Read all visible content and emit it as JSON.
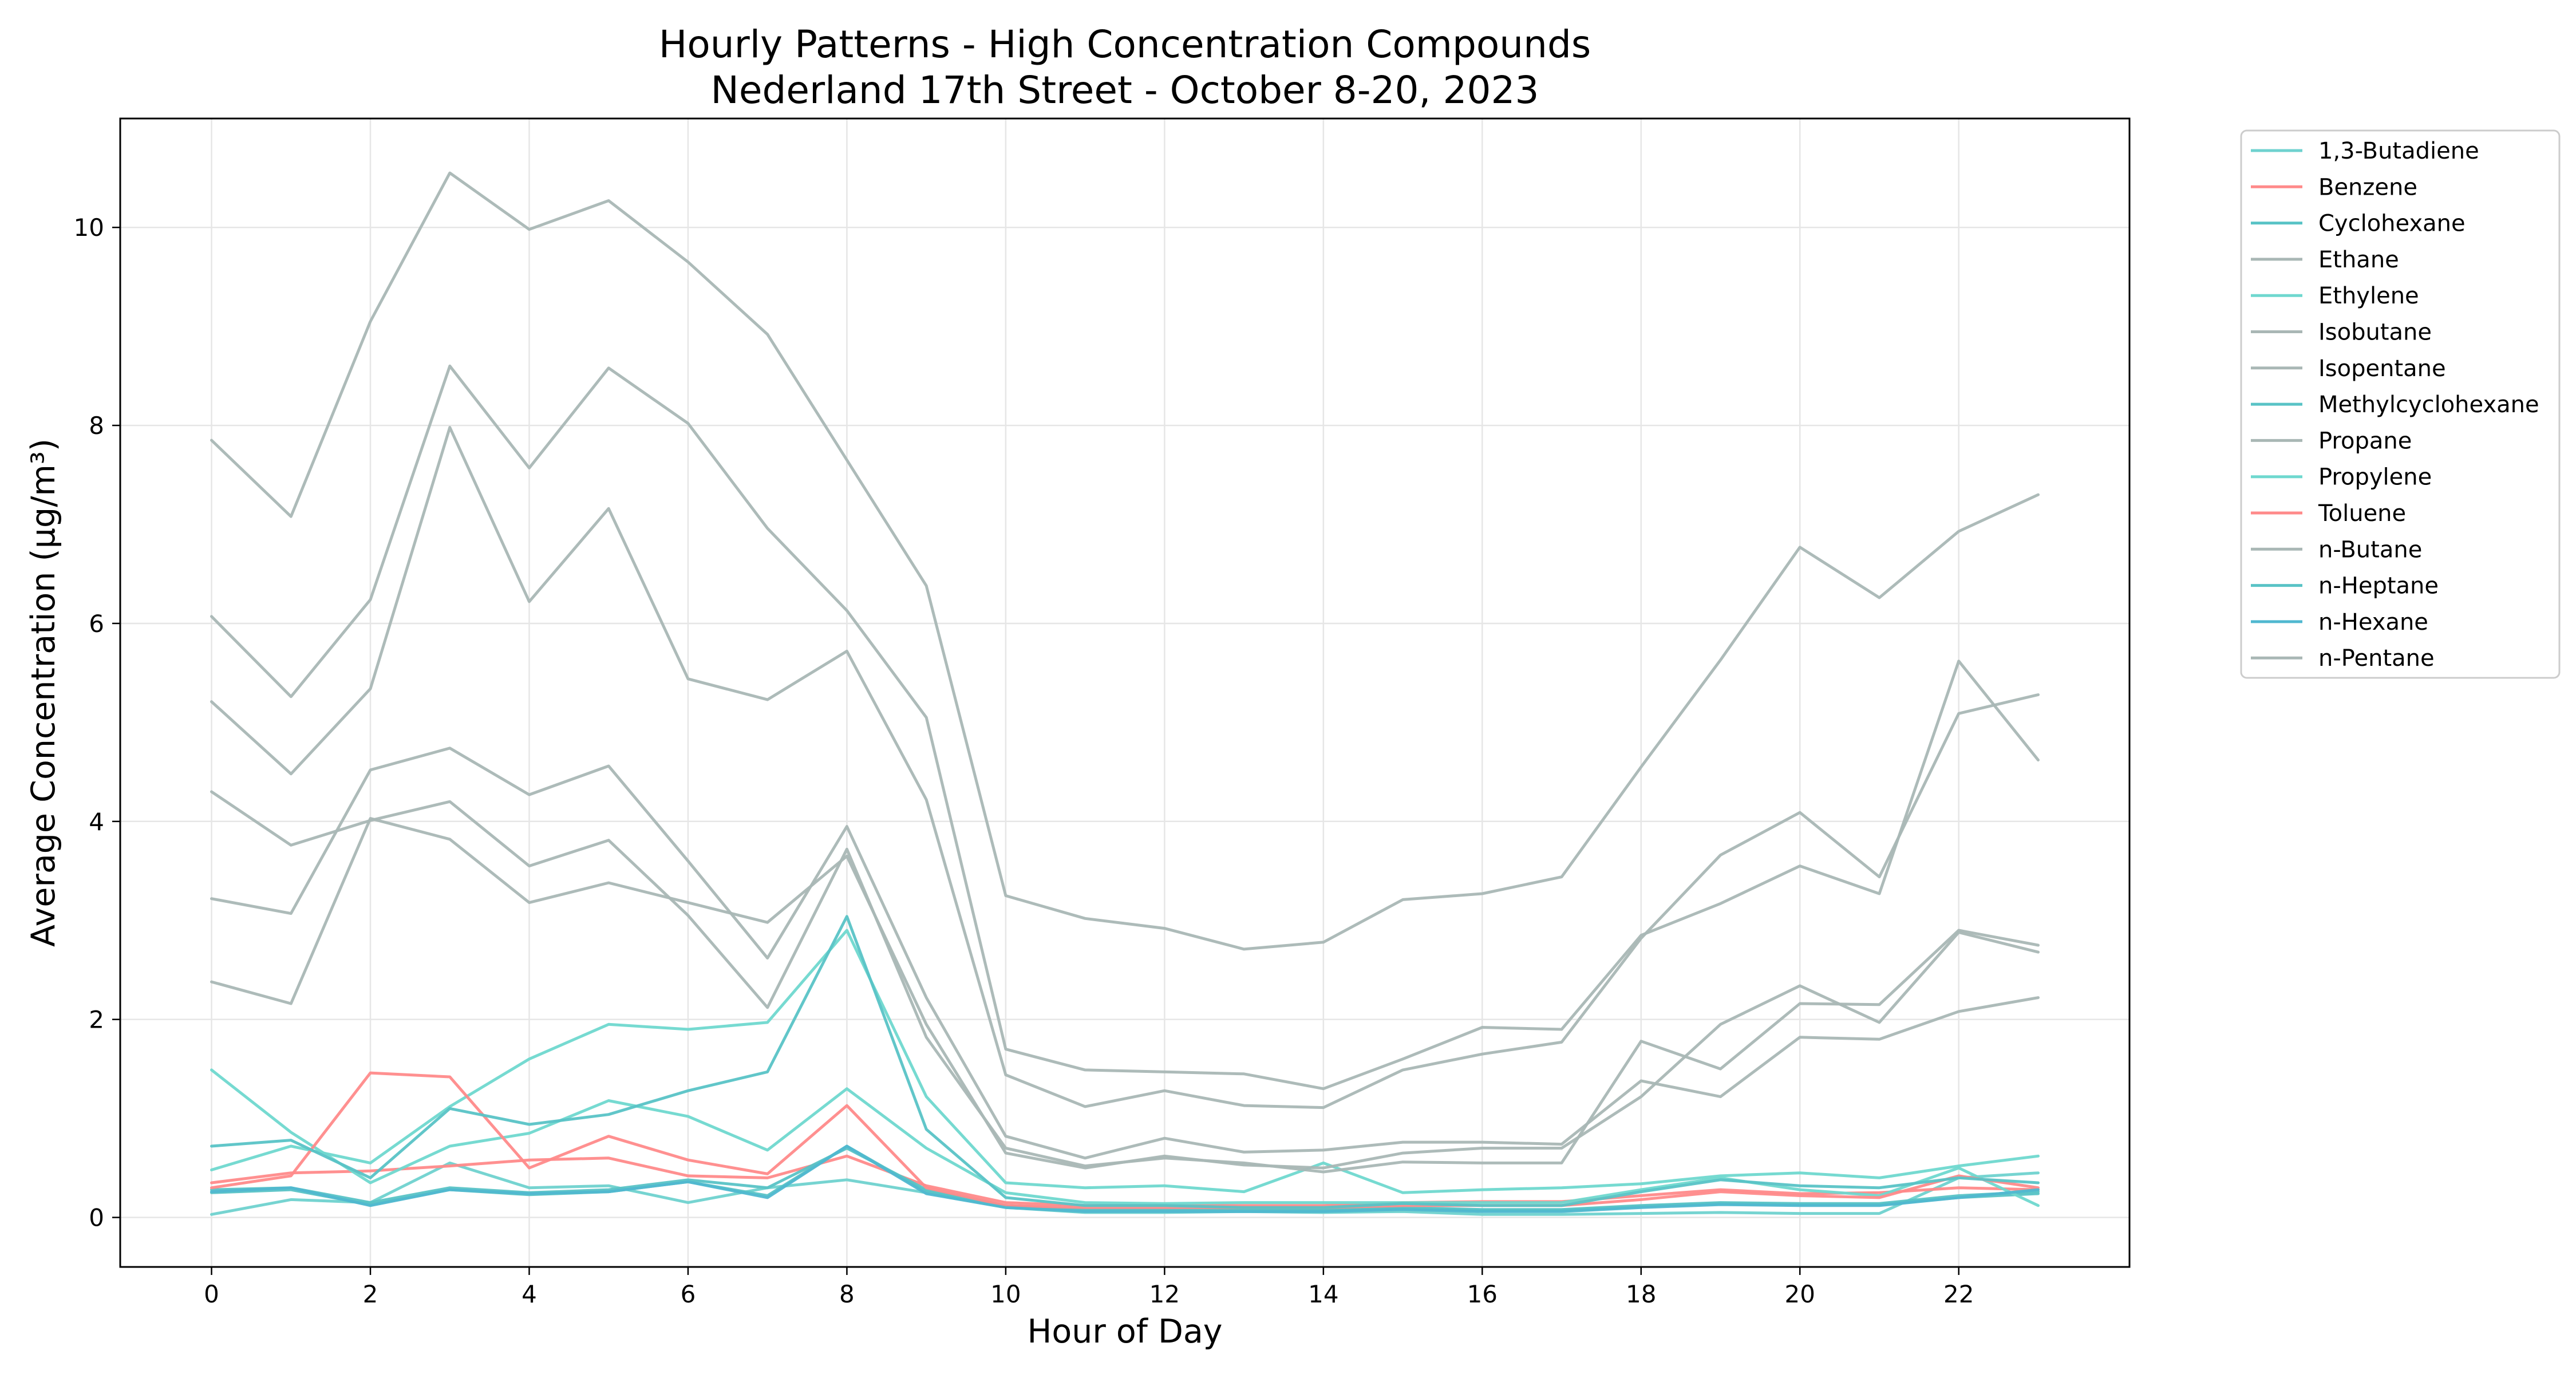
{
  "chart_data": {
    "type": "line",
    "title": "Hourly Patterns - High Concentration Compounds",
    "subtitle": "Nederland 17th Street - October 8-20, 2023",
    "xlabel": "Hour of Day",
    "ylabel": "Average Concentration (µg/m³)",
    "xlim": [
      -1.15,
      24.15
    ],
    "ylim": [
      -0.5,
      11.1
    ],
    "x_ticks": [
      0,
      2,
      4,
      6,
      8,
      10,
      12,
      14,
      16,
      18,
      20,
      22
    ],
    "y_ticks": [
      0,
      2,
      4,
      6,
      8,
      10
    ],
    "grid": true,
    "legend_position": "outside-right-top",
    "x": [
      0,
      1,
      2,
      3,
      4,
      5,
      6,
      7,
      8,
      9,
      10,
      11,
      12,
      13,
      14,
      15,
      16,
      17,
      18,
      19,
      20,
      21,
      22,
      23
    ],
    "series": [
      {
        "name": "1,3-Butadiene",
        "color": "#6fd2cf",
        "values": [
          0.03,
          0.18,
          0.15,
          0.55,
          0.3,
          0.32,
          0.15,
          0.3,
          0.38,
          0.25,
          0.1,
          0.05,
          0.05,
          0.06,
          0.05,
          0.06,
          0.03,
          0.03,
          0.04,
          0.05,
          0.04,
          0.04,
          0.4,
          0.45
        ]
      },
      {
        "name": "Benzene",
        "color": "#ff8a8a",
        "values": [
          0.35,
          0.45,
          0.47,
          0.52,
          0.58,
          0.6,
          0.42,
          0.4,
          0.62,
          0.32,
          0.15,
          0.12,
          0.12,
          0.12,
          0.12,
          0.15,
          0.16,
          0.16,
          0.22,
          0.28,
          0.24,
          0.25,
          0.3,
          0.28
        ]
      },
      {
        "name": "Cyclohexane",
        "color": "#59c3c6",
        "values": [
          0.28,
          0.3,
          0.15,
          0.3,
          0.25,
          0.28,
          0.38,
          0.3,
          0.7,
          0.28,
          0.12,
          0.08,
          0.08,
          0.08,
          0.08,
          0.1,
          0.08,
          0.08,
          0.12,
          0.15,
          0.14,
          0.14,
          0.22,
          0.26
        ]
      },
      {
        "name": "Ethane",
        "color": "#a9b7b5",
        "values": [
          7.85,
          7.08,
          9.05,
          10.55,
          9.98,
          10.27,
          9.65,
          8.92,
          7.65,
          6.38,
          3.25,
          3.02,
          2.92,
          2.71,
          2.78,
          3.21,
          3.27,
          3.44,
          4.55,
          5.63,
          6.77,
          6.26,
          6.93,
          7.3
        ]
      },
      {
        "name": "Ethylene",
        "color": "#6fd8cf",
        "values": [
          0.48,
          0.72,
          0.55,
          1.12,
          1.6,
          1.95,
          1.9,
          1.97,
          2.9,
          1.22,
          0.35,
          0.3,
          0.32,
          0.26,
          0.55,
          0.25,
          0.28,
          0.3,
          0.34,
          0.42,
          0.45,
          0.4,
          0.52,
          0.62
        ]
      },
      {
        "name": "Isobutane",
        "color": "#a9b7b5",
        "values": [
          2.38,
          2.16,
          4.03,
          3.82,
          3.18,
          3.38,
          3.18,
          2.98,
          3.65,
          1.95,
          0.65,
          0.5,
          0.62,
          0.53,
          0.5,
          0.65,
          0.7,
          0.7,
          1.22,
          1.95,
          2.34,
          1.97,
          2.88,
          2.68
        ]
      },
      {
        "name": "Isopentane",
        "color": "#a9b7b5",
        "values": [
          3.22,
          3.07,
          4.52,
          4.74,
          4.27,
          4.56,
          3.6,
          2.62,
          3.95,
          2.22,
          0.82,
          0.6,
          0.8,
          0.66,
          0.68,
          0.76,
          0.76,
          0.74,
          1.38,
          1.22,
          1.82,
          1.8,
          2.08,
          2.22
        ]
      },
      {
        "name": "Methylcyclohexane",
        "color": "#59c3c6",
        "values": [
          0.25,
          0.28,
          0.13,
          0.28,
          0.23,
          0.26,
          0.36,
          0.22,
          0.72,
          0.26,
          0.11,
          0.08,
          0.08,
          0.07,
          0.07,
          0.09,
          0.07,
          0.07,
          0.11,
          0.14,
          0.13,
          0.13,
          0.2,
          0.24
        ]
      },
      {
        "name": "Propane",
        "color": "#a9b7b5",
        "values": [
          6.07,
          5.26,
          6.24,
          8.6,
          7.57,
          8.58,
          8.02,
          6.96,
          6.13,
          5.05,
          1.7,
          1.49,
          1.47,
          1.45,
          1.3,
          1.6,
          1.92,
          1.9,
          2.85,
          3.17,
          3.55,
          3.27,
          5.62,
          4.62
        ]
      },
      {
        "name": "Propylene",
        "color": "#6fd8cf",
        "values": [
          1.49,
          0.86,
          0.35,
          0.72,
          0.85,
          1.18,
          1.02,
          0.68,
          1.3,
          0.7,
          0.25,
          0.15,
          0.14,
          0.15,
          0.15,
          0.15,
          0.15,
          0.15,
          0.28,
          0.4,
          0.28,
          0.22,
          0.5,
          0.12
        ]
      },
      {
        "name": "Toluene",
        "color": "#ff8a8a",
        "values": [
          0.3,
          0.42,
          1.46,
          1.42,
          0.5,
          0.82,
          0.58,
          0.44,
          1.13,
          0.3,
          0.12,
          0.1,
          0.1,
          0.1,
          0.1,
          0.12,
          0.12,
          0.12,
          0.18,
          0.26,
          0.22,
          0.2,
          0.42,
          0.3
        ]
      },
      {
        "name": "n-Butane",
        "color": "#a9b7b5",
        "values": [
          5.21,
          4.48,
          5.34,
          7.98,
          6.22,
          7.16,
          5.44,
          5.23,
          5.72,
          4.22,
          1.44,
          1.12,
          1.28,
          1.13,
          1.11,
          1.49,
          1.65,
          1.77,
          2.82,
          3.66,
          4.09,
          3.44,
          5.09,
          5.28
        ]
      },
      {
        "name": "n-Heptane",
        "color": "#59c3c6",
        "values": [
          0.72,
          0.78,
          0.4,
          1.1,
          0.94,
          1.04,
          1.28,
          1.47,
          3.04,
          0.89,
          0.2,
          0.12,
          0.12,
          0.1,
          0.1,
          0.14,
          0.12,
          0.12,
          0.26,
          0.38,
          0.32,
          0.3,
          0.4,
          0.35
        ]
      },
      {
        "name": "n-Hexane",
        "color": "#50b8d0",
        "values": [
          0.26,
          0.3,
          0.12,
          0.28,
          0.24,
          0.26,
          0.36,
          0.2,
          0.72,
          0.24,
          0.1,
          0.06,
          0.06,
          0.06,
          0.06,
          0.08,
          0.06,
          0.06,
          0.1,
          0.13,
          0.12,
          0.12,
          0.2,
          0.28
        ]
      },
      {
        "name": "n-Pentane",
        "color": "#a9b7b5",
        "values": [
          4.3,
          3.76,
          4.01,
          4.2,
          3.55,
          3.81,
          3.05,
          2.12,
          3.72,
          1.82,
          0.7,
          0.52,
          0.6,
          0.55,
          0.46,
          0.56,
          0.55,
          0.55,
          1.78,
          1.5,
          2.16,
          2.15,
          2.9,
          2.75
        ]
      }
    ]
  }
}
